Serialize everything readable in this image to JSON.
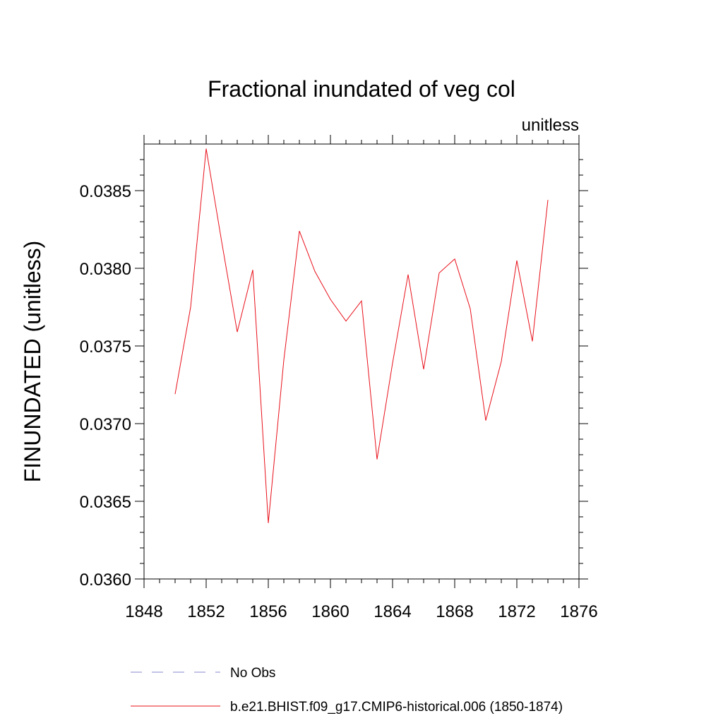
{
  "chart_data": {
    "type": "line",
    "title": "Fractional inundated of veg col",
    "units_label": "unitless",
    "xlabel": "",
    "ylabel": "FINUNDATED  (unitless)",
    "xlim": [
      1848,
      1876
    ],
    "ylim": [
      0.036,
      0.0388
    ],
    "xticks": [
      1848,
      1852,
      1856,
      1860,
      1864,
      1868,
      1872,
      1876
    ],
    "xtick_labels": [
      "1848",
      "1852",
      "1856",
      "1860",
      "1864",
      "1868",
      "1872",
      "1876"
    ],
    "yticks": [
      0.036,
      0.0365,
      0.037,
      0.0375,
      0.038,
      0.0385
    ],
    "ytick_labels": [
      "0.0360",
      "0.0365",
      "0.0370",
      "0.0375",
      "0.0380",
      "0.0385"
    ],
    "grid": false,
    "series": [
      {
        "name": "b.e21.BHIST.f09_g17.CMIP6-historical.006 (1850-1874)",
        "color": "#e8101a",
        "style": "solid",
        "x": [
          1850,
          1851,
          1852,
          1853,
          1854,
          1855,
          1856,
          1857,
          1858,
          1859,
          1860,
          1861,
          1862,
          1863,
          1864,
          1865,
          1866,
          1867,
          1868,
          1869,
          1870,
          1871,
          1872,
          1873,
          1874
        ],
        "values": [
          0.03719,
          0.03775,
          0.03877,
          0.03817,
          0.03759,
          0.03799,
          0.03636,
          0.03741,
          0.03824,
          0.03798,
          0.0378,
          0.03766,
          0.03779,
          0.03677,
          0.03739,
          0.03796,
          0.03735,
          0.03797,
          0.03806,
          0.03774,
          0.03702,
          0.0374,
          0.03805,
          0.03753,
          0.03844
        ]
      }
    ],
    "legend": [
      {
        "label": "No Obs",
        "color": "#8a8ad0",
        "style": "dashed"
      },
      {
        "label": "b.e21.BHIST.f09_g17.CMIP6-historical.006 (1850-1874)",
        "color": "#e8101a",
        "style": "solid"
      }
    ]
  }
}
